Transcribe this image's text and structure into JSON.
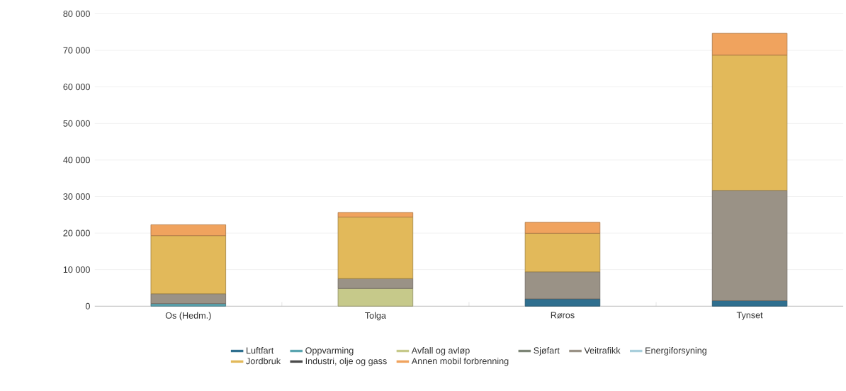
{
  "chart_data": {
    "type": "bar",
    "stacked": true,
    "categories": [
      "Os (Hedm.)",
      "Tolga",
      "Røros",
      "Tynset"
    ],
    "series": [
      {
        "name": "Luftfart",
        "color": "#2f6f8f",
        "values": [
          null,
          null,
          2000,
          1500
        ]
      },
      {
        "name": "Oppvarming",
        "color": "#5aa5b0",
        "values": [
          700,
          null,
          null,
          null
        ]
      },
      {
        "name": "Avfall og avløp",
        "color": "#c6c98a",
        "values": [
          null,
          4850,
          null,
          null
        ]
      },
      {
        "name": "Sjøfart",
        "color": "#7d8576",
        "values": [
          null,
          null,
          null,
          null
        ]
      },
      {
        "name": "Veitrafikk",
        "color": "#9a9286",
        "values": [
          2700,
          2700,
          7400,
          30200
        ]
      },
      {
        "name": "Energiforsyning",
        "color": "#a9cfdc",
        "values": [
          null,
          null,
          null,
          null
        ]
      },
      {
        "name": "Jordbruk",
        "color": "#e2b95a",
        "values": [
          15900,
          16850,
          10550,
          37000
        ]
      },
      {
        "name": "Industri, olje og gass",
        "color": "#4b4b4b",
        "values": [
          null,
          null,
          null,
          null
        ]
      },
      {
        "name": "Annen mobil forbrenning",
        "color": "#f0a35e",
        "values": [
          3000,
          1250,
          3000,
          5950
        ]
      }
    ],
    "ylim": [
      0,
      80000
    ],
    "yticks": [
      {
        "value": 0,
        "label": "0"
      },
      {
        "value": 10000,
        "label": "10 000"
      },
      {
        "value": 20000,
        "label": "20 000"
      },
      {
        "value": 30000,
        "label": "30 000"
      },
      {
        "value": 40000,
        "label": "40 000"
      },
      {
        "value": 50000,
        "label": "50 000"
      },
      {
        "value": 60000,
        "label": "60 000"
      },
      {
        "value": 70000,
        "label": "70 000"
      },
      {
        "value": 80000,
        "label": "80 000"
      }
    ],
    "grid": "y",
    "legend": "bottom"
  }
}
